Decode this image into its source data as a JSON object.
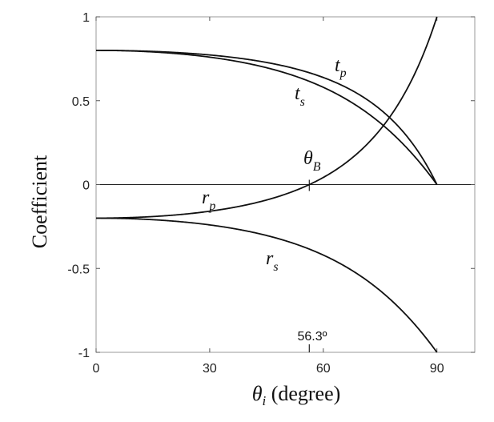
{
  "chart_data": {
    "type": "line",
    "xlabel": {
      "symbol": "θ",
      "sub": "i",
      "rest": " (degree)"
    },
    "ylabel": "Coefficient",
    "xlim": [
      0,
      100
    ],
    "ylim": [
      -1,
      1
    ],
    "xticks": [
      0,
      30,
      60,
      90
    ],
    "yticks": [
      1,
      0.5,
      0,
      -0.5,
      -1
    ],
    "xtick_labels": [
      "0",
      "30",
      "60",
      "90"
    ],
    "ytick_labels": [
      "1",
      "0.5",
      "0",
      "-0.5",
      "-1"
    ],
    "zero_line": true,
    "grid": false,
    "series": [
      {
        "name": "t_p",
        "label": {
          "main": "t",
          "sub": "p"
        },
        "n1": 1.0,
        "n2": 1.5,
        "kind": "tp"
      },
      {
        "name": "t_s",
        "label": {
          "main": "t",
          "sub": "s"
        },
        "n1": 1.0,
        "n2": 1.5,
        "kind": "ts"
      },
      {
        "name": "r_p",
        "label": {
          "main": "r",
          "sub": "p"
        },
        "n1": 1.0,
        "n2": 1.5,
        "kind": "rp"
      },
      {
        "name": "r_s",
        "label": {
          "main": "r",
          "sub": "s"
        },
        "n1": 1.0,
        "n2": 1.5,
        "kind": "rs"
      }
    ],
    "annotations": {
      "brewster": {
        "symbol": "θ",
        "sub": "B",
        "x": 56.3
      },
      "brewster_value": "56.3º"
    }
  }
}
